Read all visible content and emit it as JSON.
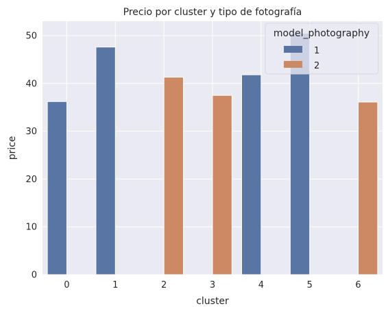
{
  "chart_data": {
    "type": "bar",
    "title": "Precio por cluster y tipo de fotografía",
    "xlabel": "cluster",
    "ylabel": "price",
    "categories": [
      "0",
      "1",
      "2",
      "3",
      "4",
      "5",
      "6"
    ],
    "ylim": [
      0,
      53
    ],
    "yticks": [
      0,
      10,
      20,
      30,
      40,
      50
    ],
    "grid": true,
    "legend": {
      "title": "model_photography",
      "placement": "top-right"
    },
    "series": [
      {
        "name": "1",
        "color": "#5875a4",
        "values": [
          36.2,
          47.6,
          null,
          null,
          41.8,
          50.5,
          null
        ]
      },
      {
        "name": "2",
        "color": "#cc8963",
        "values": [
          null,
          null,
          41.3,
          37.5,
          null,
          null,
          36.1
        ]
      }
    ]
  }
}
